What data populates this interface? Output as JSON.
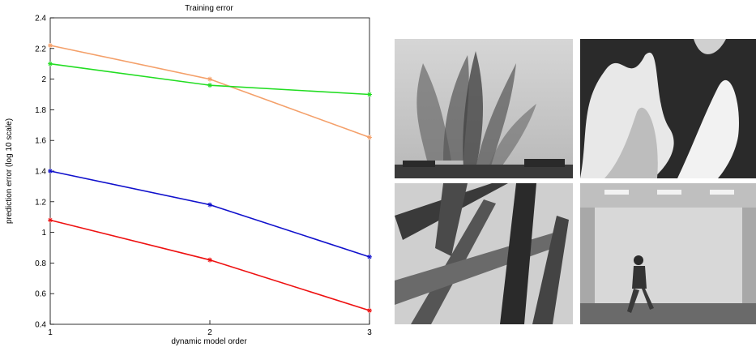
{
  "chart_data": {
    "type": "line",
    "title": "Training error",
    "xlabel": "dynamic model order",
    "ylabel": "prediction error (log 10 scale)",
    "x": [
      1,
      2,
      3
    ],
    "xlim": [
      1,
      3
    ],
    "ylim": [
      0.4,
      2.4
    ],
    "xticks": [
      "1",
      "2",
      "3"
    ],
    "yticks": [
      "0.4",
      "0.6",
      "0.8",
      "1",
      "1.2",
      "1.4",
      "1.6",
      "1.8",
      "2",
      "2.2",
      "2.4"
    ],
    "grid": false,
    "series": [
      {
        "color": "#f4a06a",
        "values": [
          2.22,
          2.0,
          1.62
        ]
      },
      {
        "color": "#22dd22",
        "values": [
          2.1,
          1.96,
          1.9
        ]
      },
      {
        "color": "#1111cc",
        "values": [
          1.4,
          1.18,
          0.84
        ]
      },
      {
        "color": "#ee1111",
        "values": [
          1.08,
          0.82,
          0.49
        ]
      }
    ]
  },
  "images": [
    {
      "name": "fountain-frame",
      "subject": "fountain"
    },
    {
      "name": "fire-frame",
      "subject": "fire"
    },
    {
      "name": "plant-frame",
      "subject": "plant leaves"
    },
    {
      "name": "walking-person-frame",
      "subject": "person walking in a room"
    }
  ]
}
